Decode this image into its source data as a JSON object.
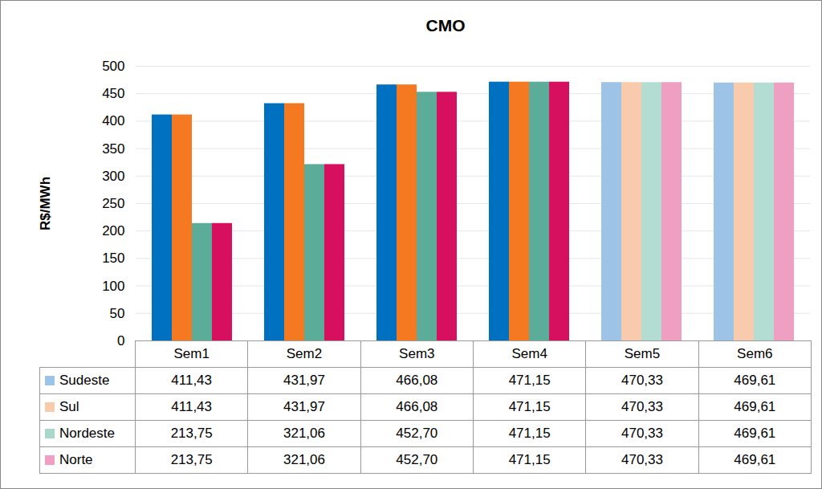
{
  "chart_data": {
    "type": "bar",
    "title": "CMO",
    "y_label": "R$/MWh",
    "categories": [
      "Sem1",
      "Sem2",
      "Sem3",
      "Sem4",
      "Sem5",
      "Sem6"
    ],
    "series": [
      {
        "name": "Sudeste",
        "color": "#9DC3E6",
        "colors": [
          "#0070C0",
          "#0070C0",
          "#0070C0",
          "#0070C0",
          "#9DC3E6",
          "#9DC3E6"
        ],
        "values": [
          411.43,
          431.97,
          466.08,
          471.15,
          470.33,
          469.61
        ],
        "value_labels": [
          "411,43",
          "431,97",
          "466,08",
          "471,15",
          "470,33",
          "469,61"
        ]
      },
      {
        "name": "Sul",
        "color": "#F8CBAD",
        "colors": [
          "#F47920",
          "#F47920",
          "#F47920",
          "#F47920",
          "#F8CBAD",
          "#F8CBAD"
        ],
        "values": [
          411.43,
          431.97,
          466.08,
          471.15,
          470.33,
          469.61
        ],
        "value_labels": [
          "411,43",
          "431,97",
          "466,08",
          "471,15",
          "470,33",
          "469,61"
        ]
      },
      {
        "name": "Nordeste",
        "color": "#A9D8CB",
        "colors": [
          "#5BAD9A",
          "#5BAD9A",
          "#5BAD9A",
          "#5BAD9A",
          "#B3DCD2",
          "#B3DCD2"
        ],
        "values": [
          213.75,
          321.06,
          452.7,
          471.15,
          470.33,
          469.61
        ],
        "value_labels": [
          "213,75",
          "321,06",
          "452,70",
          "471,15",
          "470,33",
          "469,61"
        ]
      },
      {
        "name": "Norte",
        "color": "#EFA0C2",
        "colors": [
          "#D6105E",
          "#D6105E",
          "#D6105E",
          "#D6105E",
          "#EFA0C2",
          "#EFA0C2"
        ],
        "values": [
          213.75,
          321.06,
          452.7,
          471.15,
          470.33,
          469.61
        ],
        "value_labels": [
          "213,75",
          "321,06",
          "452,70",
          "471,15",
          "470,33",
          "469,61"
        ]
      }
    ],
    "ylim": [
      0,
      500
    ],
    "yticks": [
      0,
      50,
      100,
      150,
      200,
      250,
      300,
      350,
      400,
      450,
      500
    ],
    "grid": true
  }
}
